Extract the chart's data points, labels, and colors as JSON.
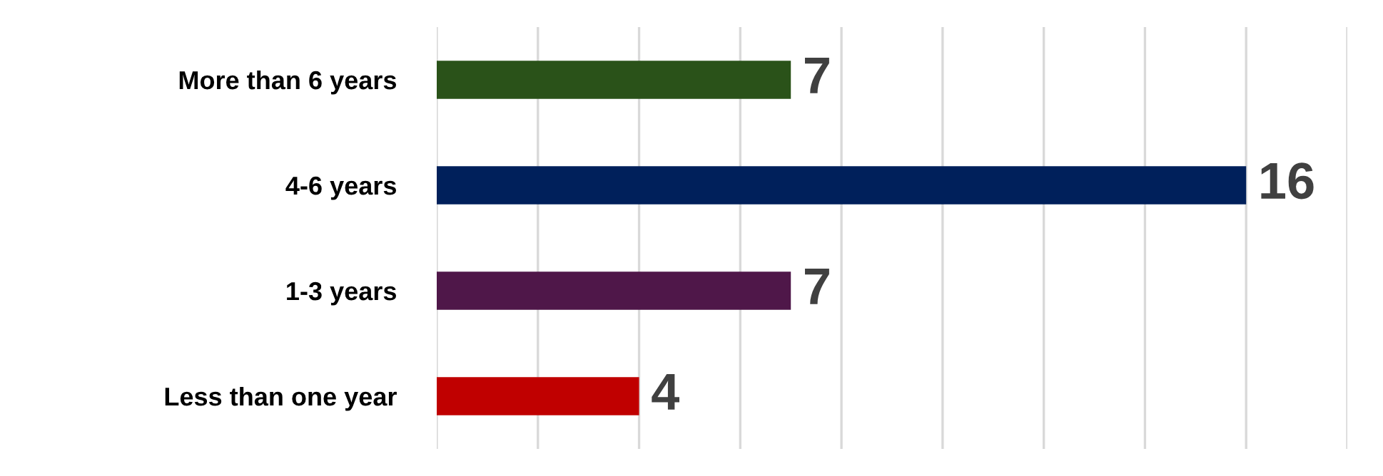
{
  "chart_data": {
    "type": "bar",
    "orientation": "horizontal",
    "categories": [
      "More than 6 years",
      "4-6 years",
      "1-3 years",
      "Less than one year"
    ],
    "values": [
      7,
      16,
      7,
      4
    ],
    "colors": [
      "#2a5219",
      "#00205b",
      "#4f1749",
      "#c00000"
    ],
    "xlim": [
      0,
      18
    ],
    "xticks": [
      {
        "value": 0,
        "label": null
      },
      {
        "value": 2,
        "label": null
      },
      {
        "value": 4,
        "label": null
      },
      {
        "value": 6,
        "label": null
      },
      {
        "value": 8,
        "label": null
      },
      {
        "value": 10,
        "label": null
      },
      {
        "value": 12,
        "label": null
      },
      {
        "value": 14,
        "label": null
      },
      {
        "value": 16,
        "label": null
      },
      {
        "value": 18,
        "label": null
      }
    ],
    "tick_labels": "y",
    "grid": "x",
    "data_labels": true
  }
}
